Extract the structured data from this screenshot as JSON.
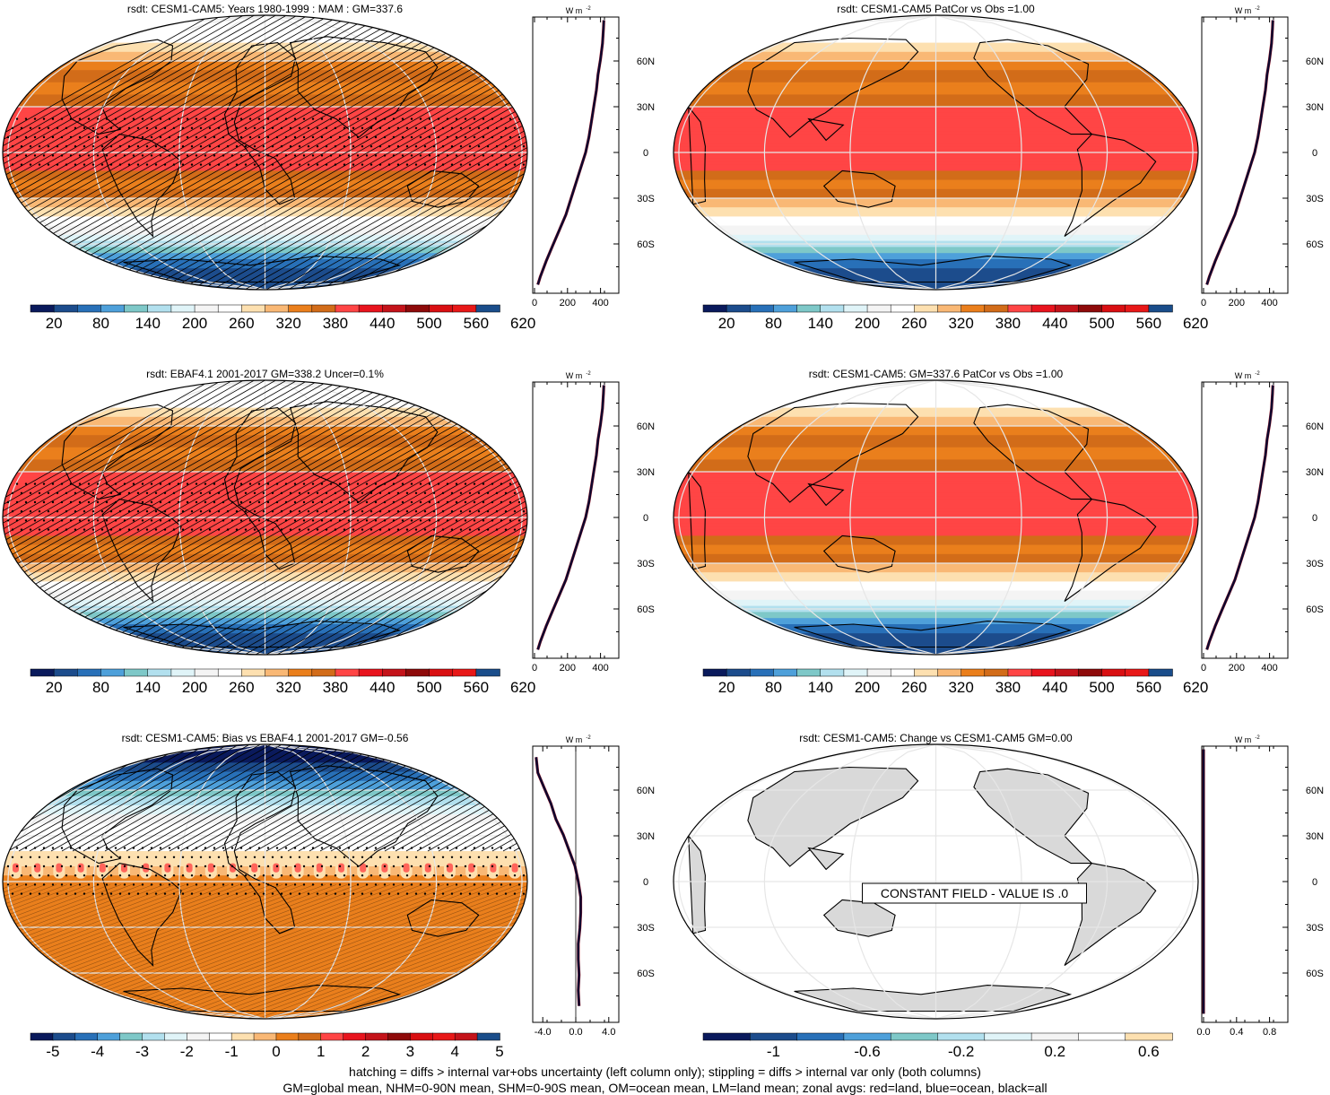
{
  "colors": {
    "full": [
      "#0a1a5c",
      "#1c4c8c",
      "#2870b8",
      "#4ea0da",
      "#7ec8c8",
      "#b2e0ee",
      "#e0f4f8",
      "#f4f4f4",
      "#ffffff",
      "#fde0b0",
      "#f9b875",
      "#ea7f1c",
      "#d26c19",
      "#ff4545",
      "#e8141e",
      "#c4131a",
      "#8e0a0a",
      "#d90f12",
      "#e81818",
      "#1a4d8a"
    ],
    "bias": [
      "#0a1a5c",
      "#1c4c8c",
      "#2870b8",
      "#4ea0da",
      "#7ec8c8",
      "#b2e0ee",
      "#e0f4f8",
      "#f4f4f4",
      "#ffffff",
      "#fde0b0",
      "#f9b875",
      "#ea7f1c",
      "#d26c19",
      "#ff4545",
      "#e8141e",
      "#c4131a",
      "#8e0a0a",
      "#d90f12",
      "#e81818",
      "#c4131a",
      "#1a4d8a"
    ],
    "change": [
      "#0a1a5c",
      "#1c4c8c",
      "#2870b8",
      "#4ea0da",
      "#7ec8c8",
      "#b2e0ee",
      "#e0f4f8",
      "#f4f4f4",
      "#ffffff",
      "#fde0b0"
    ],
    "land": "#d9d9d9"
  },
  "chart_data": [
    {
      "type": "heatmap",
      "id": "p1",
      "title": "rsdt: CESM1-CAM5: Years 1980-1999 : MAM : GM=337.6",
      "hatching": true,
      "stippling": true,
      "colorbar": {
        "labels": [
          "20",
          "80",
          "140",
          "200",
          "260",
          "320",
          "380",
          "440",
          "500",
          "560",
          "620"
        ],
        "palette": "full"
      },
      "zonal": {
        "unit": "W m⁻²",
        "xlim": [
          0,
          500
        ],
        "xticks": [
          "0",
          "200",
          "400"
        ],
        "lat_ticks": [
          "60N",
          "30N",
          "0",
          "30S",
          "60S"
        ],
        "lat": [
          85,
          80,
          70,
          60,
          50,
          40,
          30,
          20,
          10,
          0,
          -10,
          -20,
          -30,
          -40,
          -50,
          -60,
          -70,
          -80,
          -85
        ],
        "values": [
          420,
          418,
          412,
          400,
          385,
          375,
          360,
          345,
          330,
          310,
          280,
          250,
          220,
          190,
          150,
          110,
          70,
          35,
          20
        ]
      }
    },
    {
      "type": "heatmap",
      "id": "p2",
      "title": "rsdt: CESM1-CAM5 PatCor vs Obs =1.00",
      "colorbar": {
        "labels": [
          "20",
          "80",
          "140",
          "200",
          "260",
          "320",
          "380",
          "440",
          "500",
          "560",
          "620"
        ],
        "palette": "full"
      },
      "zonal": {
        "unit": "W m⁻²",
        "xlim": [
          0,
          500
        ],
        "xticks": [
          "0",
          "200",
          "400"
        ],
        "lat_ticks": [
          "60N",
          "30N",
          "0",
          "30S",
          "60S"
        ],
        "lat": [
          85,
          80,
          70,
          60,
          50,
          40,
          30,
          20,
          10,
          0,
          -10,
          -20,
          -30,
          -40,
          -50,
          -60,
          -70,
          -80,
          -85
        ],
        "values": [
          420,
          418,
          412,
          400,
          385,
          375,
          360,
          345,
          330,
          310,
          280,
          250,
          220,
          190,
          150,
          110,
          70,
          35,
          20
        ]
      }
    },
    {
      "type": "heatmap",
      "id": "p3",
      "title": "rsdt: EBAF4.1 2001-2017 GM=338.2 Uncer=0.1%",
      "hatching": true,
      "stippling": true,
      "colorbar": {
        "labels": [
          "20",
          "80",
          "140",
          "200",
          "260",
          "320",
          "380",
          "440",
          "500",
          "560",
          "620"
        ],
        "palette": "full"
      },
      "zonal": {
        "unit": "W m⁻²",
        "xlim": [
          0,
          500
        ],
        "xticks": [
          "0",
          "200",
          "400"
        ],
        "lat_ticks": [
          "60N",
          "30N",
          "0",
          "30S",
          "60S"
        ],
        "lat": [
          85,
          80,
          70,
          60,
          50,
          40,
          30,
          20,
          10,
          0,
          -10,
          -20,
          -30,
          -40,
          -50,
          -60,
          -70,
          -80,
          -85
        ],
        "values": [
          420,
          418,
          412,
          400,
          385,
          375,
          360,
          345,
          330,
          310,
          280,
          250,
          220,
          190,
          150,
          110,
          70,
          35,
          20
        ]
      }
    },
    {
      "type": "heatmap",
      "id": "p4",
      "title": "rsdt: CESM1-CAM5: GM=337.6 PatCor vs Obs =1.00",
      "colorbar": {
        "labels": [
          "20",
          "80",
          "140",
          "200",
          "260",
          "320",
          "380",
          "440",
          "500",
          "560",
          "620"
        ],
        "palette": "full"
      },
      "zonal": {
        "unit": "W m⁻²",
        "xlim": [
          0,
          500
        ],
        "xticks": [
          "0",
          "200",
          "400"
        ],
        "lat_ticks": [
          "60N",
          "30N",
          "0",
          "30S",
          "60S"
        ],
        "lat": [
          85,
          80,
          70,
          60,
          50,
          40,
          30,
          20,
          10,
          0,
          -10,
          -20,
          -30,
          -40,
          -50,
          -60,
          -70,
          -80,
          -85
        ],
        "values": [
          420,
          418,
          412,
          400,
          385,
          375,
          360,
          345,
          330,
          310,
          280,
          250,
          220,
          190,
          150,
          110,
          70,
          35,
          20
        ]
      }
    },
    {
      "type": "heatmap",
      "id": "p5",
      "title": "rsdt: CESM1-CAM5: Bias vs EBAF4.1 2001-2017 GM=-0.56",
      "hatching": true,
      "stippling": true,
      "colorbar": {
        "labels": [
          "-5",
          "-4",
          "-3",
          "-2",
          "-1",
          "0",
          "1",
          "2",
          "3",
          "4",
          "5"
        ],
        "palette": "bias"
      },
      "zonal": {
        "unit": "W m⁻²",
        "xlim": [
          -5,
          5
        ],
        "xticks": [
          "-4.0",
          "0.0",
          "4.0"
        ],
        "lat_ticks": [
          "60N",
          "30N",
          "0",
          "30S",
          "60S"
        ],
        "lat": [
          80,
          70,
          60,
          50,
          40,
          30,
          20,
          10,
          0,
          -10,
          -20,
          -30,
          -40,
          -50,
          -60,
          -70,
          -80
        ],
        "values": [
          -4.8,
          -4.6,
          -3.8,
          -3.0,
          -2.4,
          -1.5,
          -0.8,
          -0.1,
          0.3,
          0.6,
          0.6,
          0.5,
          0.3,
          0.3,
          0.4,
          0.3,
          0.4
        ]
      }
    },
    {
      "type": "heatmap",
      "id": "p6",
      "title": "rsdt: CESM1-CAM5: Change vs CESM1-CAM5 GM=0.00",
      "annotation": "CONSTANT FIELD - VALUE IS .0",
      "colorbar": {
        "labels": [
          "-1",
          "-0.6",
          "-0.2",
          "0.2",
          "0.6"
        ],
        "palette": "change"
      },
      "zonal": {
        "unit": "W m⁻²",
        "xlim": [
          0,
          1
        ],
        "xticks": [
          "0.0",
          "0.4",
          "0.8"
        ],
        "lat_ticks": [
          "60N",
          "30N",
          "0",
          "30S",
          "60S"
        ],
        "lat": [
          85,
          -85
        ],
        "values": [
          0,
          0
        ]
      }
    }
  ],
  "footer": {
    "line1": "hatching = diffs > internal var+obs uncertainty (left column only); stippling = diffs > internal var only (both columns)",
    "line2": "GM=global mean, NHM=0-90N mean, SHM=0-90S mean, OM=ocean mean, LM=land mean; zonal avgs: red=land, blue=ocean, black=all"
  }
}
